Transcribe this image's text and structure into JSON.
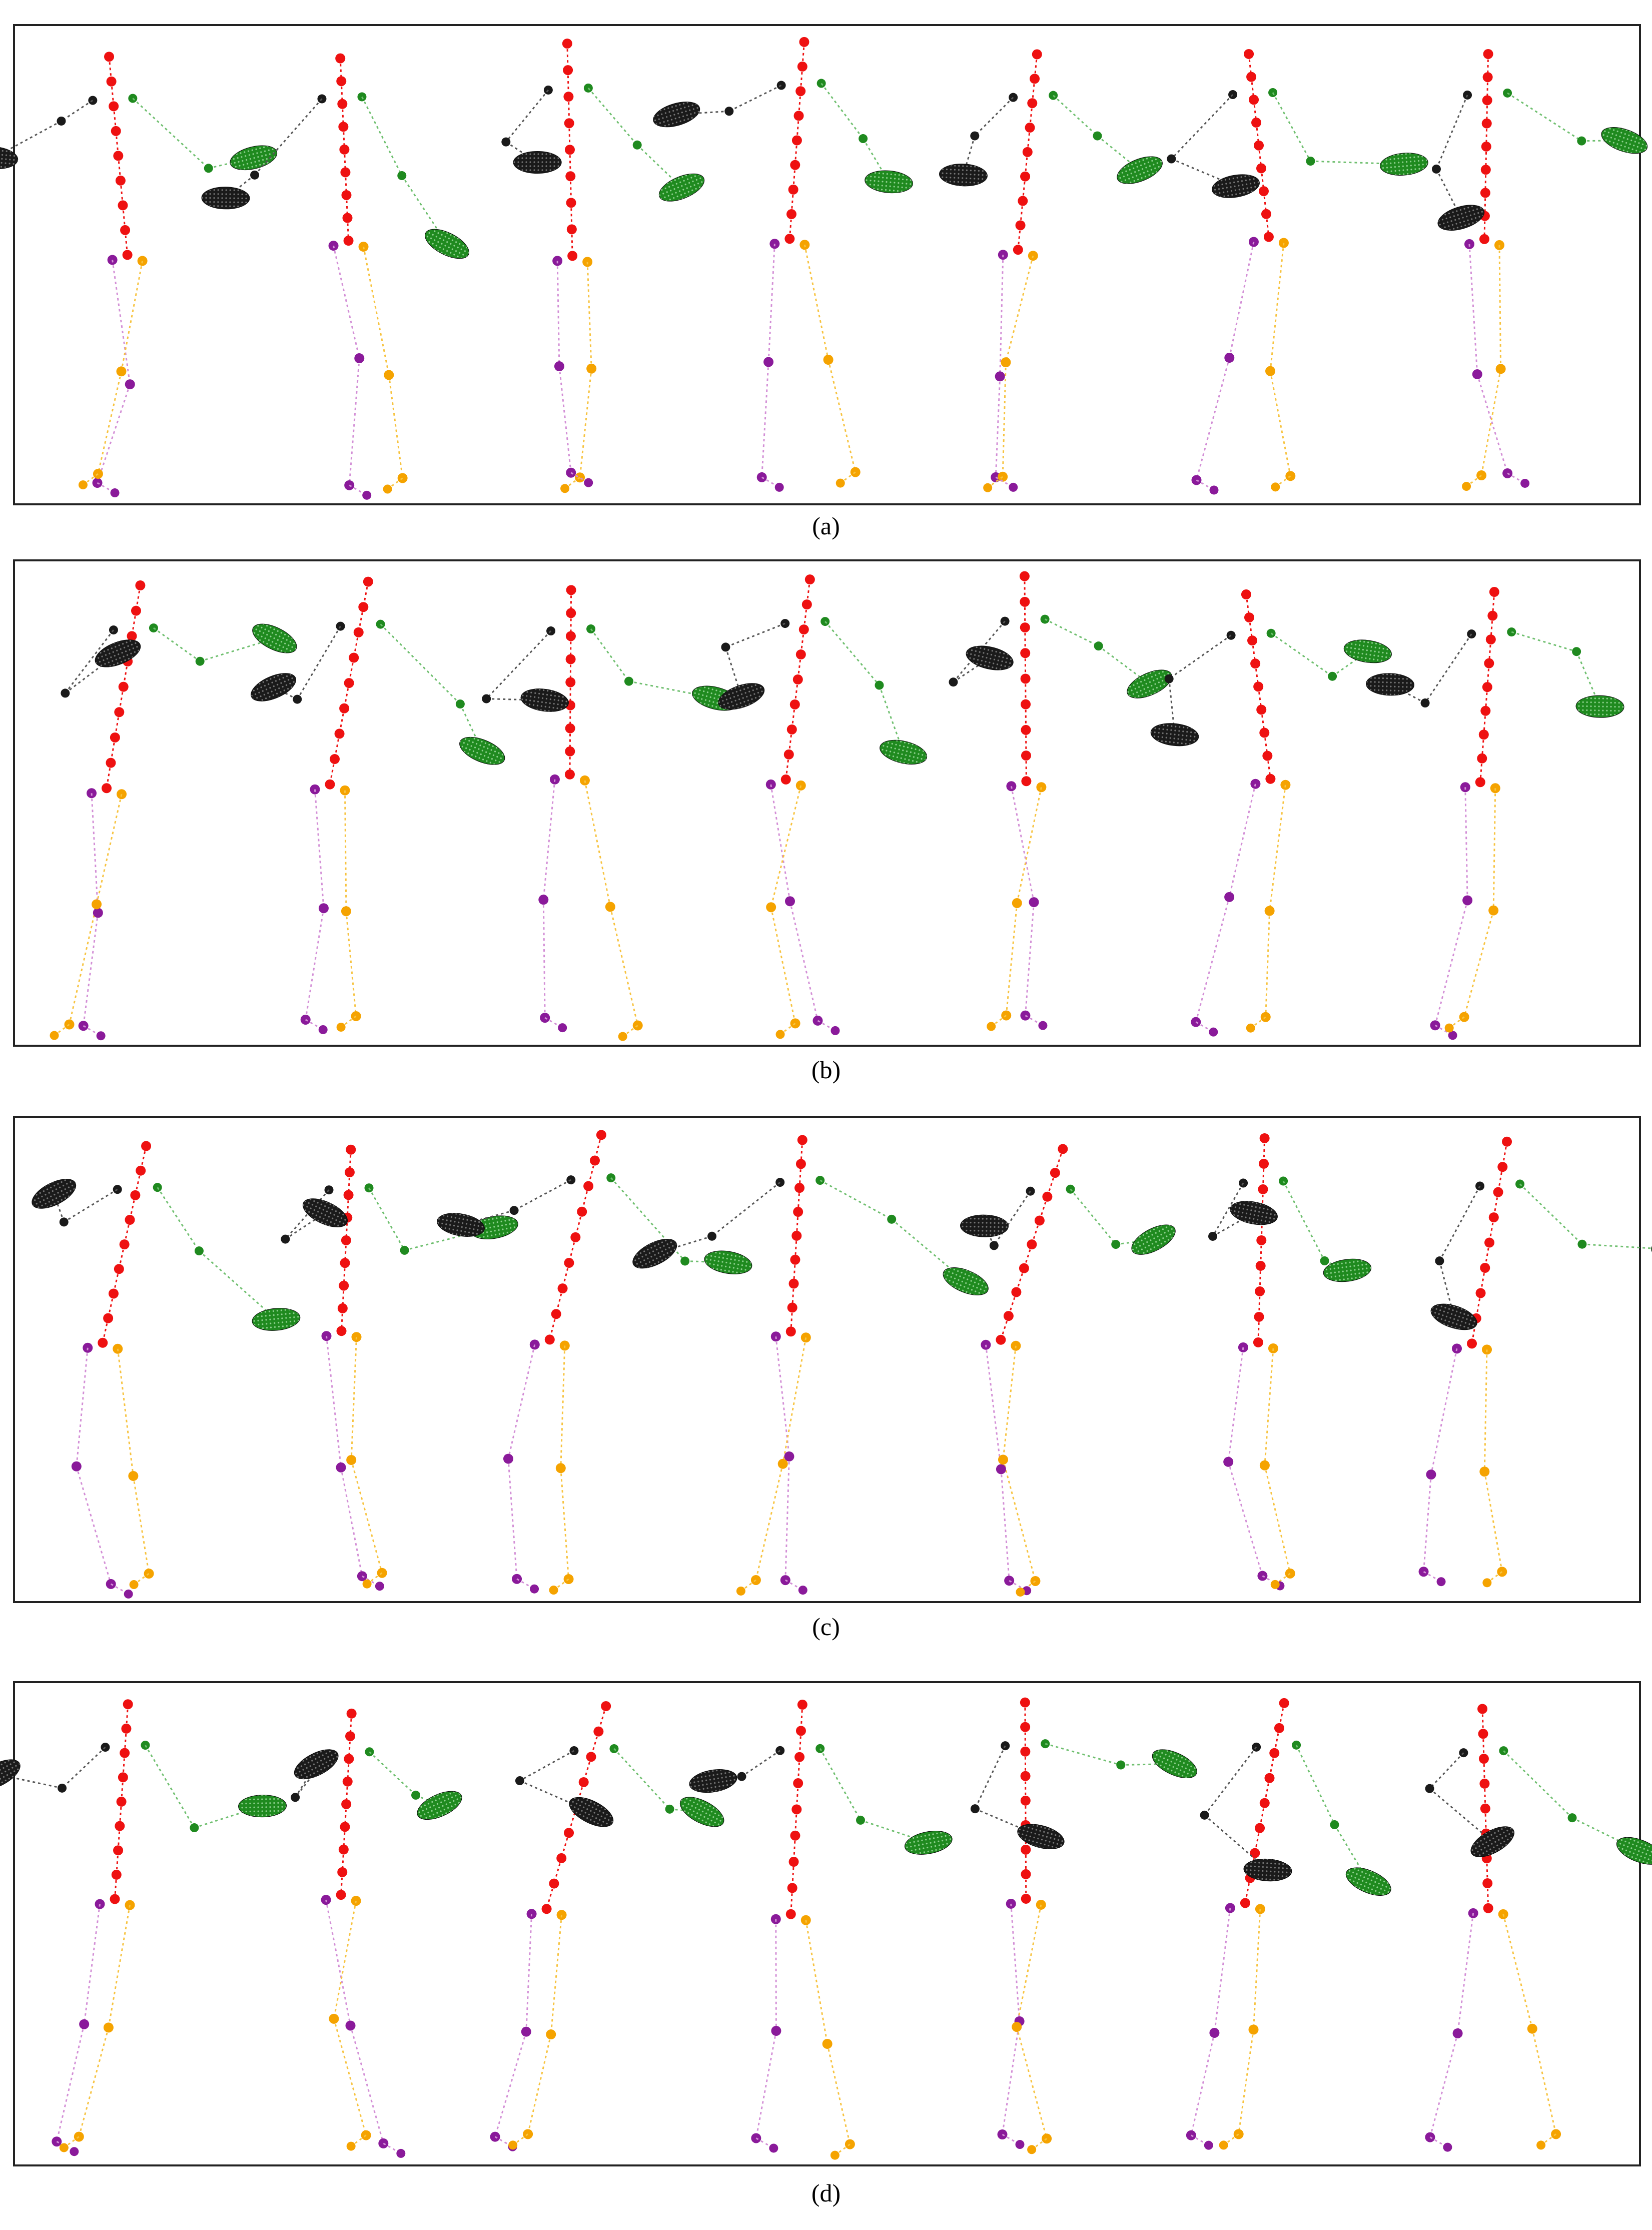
{
  "panels": [
    {
      "label": "a",
      "caption": "(a)"
    },
    {
      "label": "b",
      "caption": "(b)"
    },
    {
      "label": "c",
      "caption": "(c)"
    },
    {
      "label": "d",
      "caption": "(d)"
    }
  ],
  "colors": {
    "spine": "#ee1111",
    "left_arm": "#1a1a1a",
    "right_arm": "#1f8a1f",
    "left_leg": "#8a1a9a",
    "right_leg": "#f5a300",
    "left_leg_line": "#d38fd6",
    "right_leg_line": "#f7c340",
    "frame": "#222222"
  },
  "figures_per_panel": 7
}
